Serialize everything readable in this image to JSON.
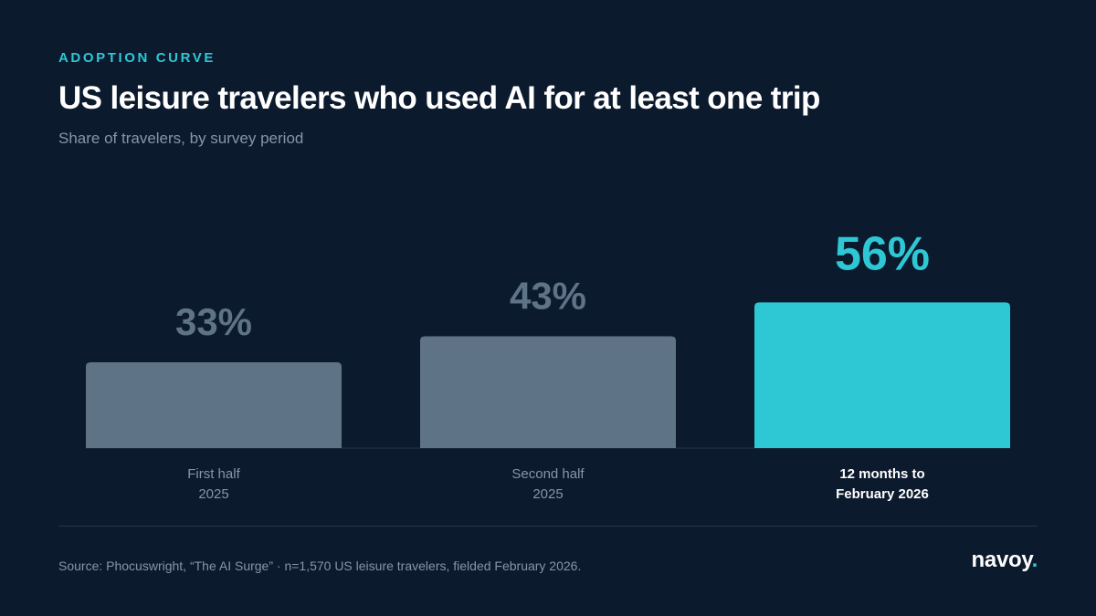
{
  "header": {
    "eyebrow": "ADOPTION CURVE",
    "title": "US leisure travelers who used AI for at least one trip",
    "subtitle": "Share of travelers, by survey period"
  },
  "chart_data": {
    "type": "bar",
    "categories": [
      [
        "First half",
        "2025"
      ],
      [
        "Second half",
        "2025"
      ],
      [
        "12 months to",
        "February 2026"
      ]
    ],
    "values": [
      33,
      43,
      56
    ],
    "value_labels": [
      "33%",
      "43%",
      "56%"
    ],
    "unit": "%",
    "ylim": [
      0,
      100
    ],
    "grid": false,
    "highlight_index": 2,
    "colors": {
      "bar": "#5f7386",
      "bar_highlight": "#2ec8d4",
      "value": "#5f7386",
      "value_highlight": "#2ec8d4",
      "label": "#8795a8",
      "label_highlight": "#ffffff",
      "baseline": "#24344b"
    }
  },
  "footer": {
    "source": "Source: Phocuswright, “The AI Surge” · n=1,570 US leisure travelers, fielded February 2026.",
    "logo_text": "navoy",
    "logo_dot": "."
  }
}
